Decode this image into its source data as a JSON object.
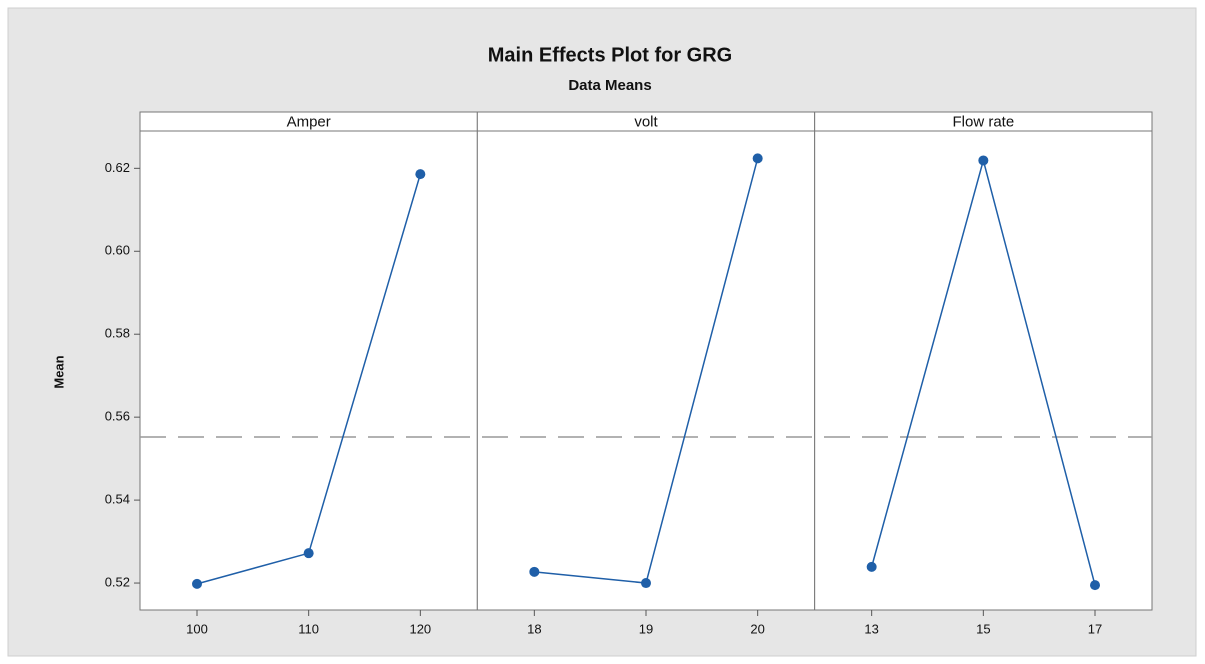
{
  "chart_data": {
    "type": "line",
    "title": "Main Effects Plot for GRG",
    "subtitle": "Data Means",
    "ylabel": "Mean",
    "color": "#1f5fa8",
    "reference_color": "#999999",
    "mean": 0.5552,
    "ylim": [
      0.5135,
      0.629
    ],
    "yticks": [
      0.52,
      0.54,
      0.56,
      0.58,
      {
        "value": 0.6,
        "label": "0.60"
      },
      0.62
    ],
    "series": [
      {
        "name": "Amper",
        "categories": [
          "100",
          "110",
          "120"
        ],
        "values": [
          0.5198,
          0.5272,
          0.6186
        ]
      },
      {
        "name": "volt",
        "categories": [
          "18",
          "19",
          "20"
        ],
        "values": [
          0.5227,
          0.52,
          0.6224
        ]
      },
      {
        "name": "Flow rate",
        "categories": [
          "13",
          "15",
          "17"
        ],
        "values": [
          0.5239,
          0.6219,
          0.5195
        ]
      }
    ]
  }
}
